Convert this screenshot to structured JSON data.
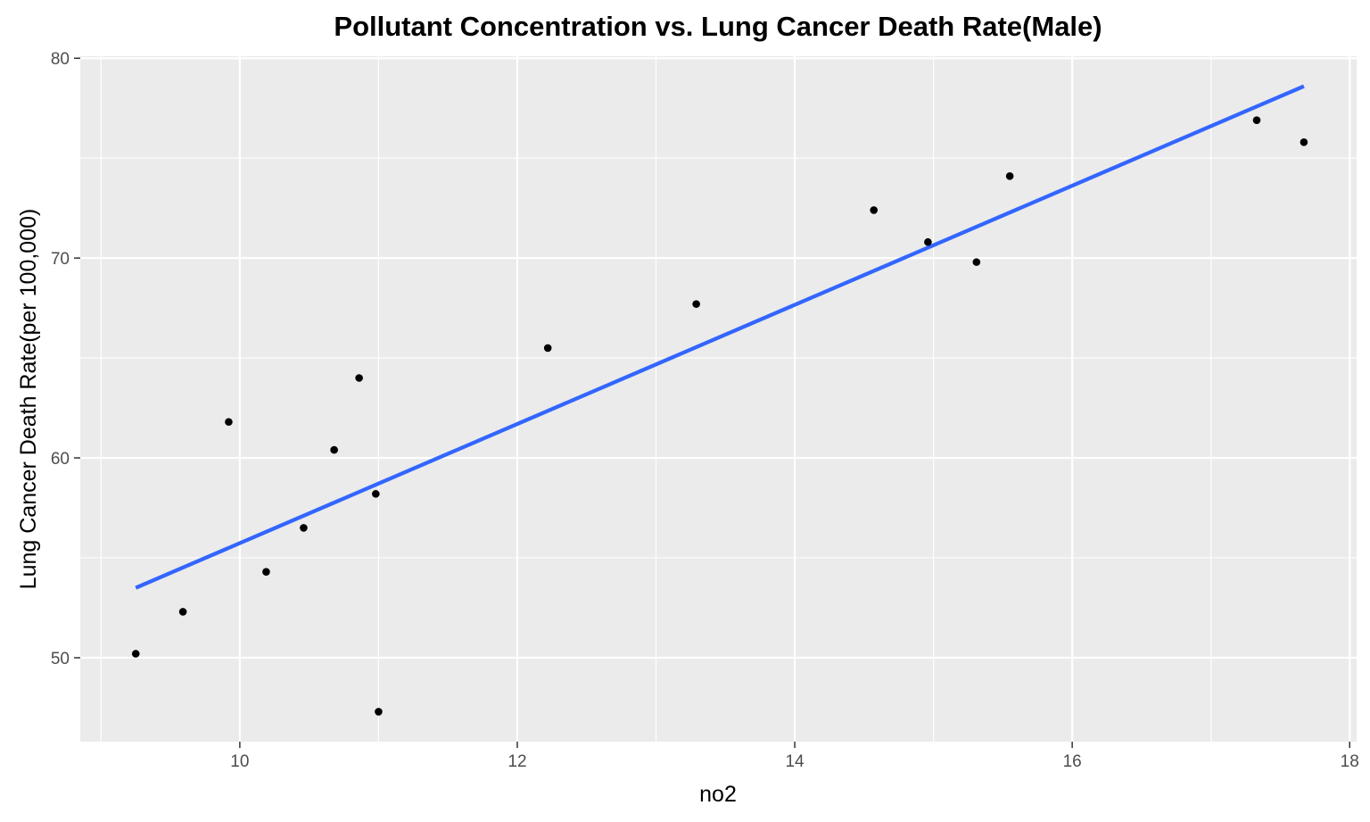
{
  "chart_data": {
    "type": "scatter",
    "title": "Pollutant Concentration vs. Lung Cancer Death Rate(Male)",
    "xlabel": "no2",
    "ylabel": "Lung Cancer Death Rate(per 100,000)",
    "xlim": [
      8.85,
      18.05
    ],
    "ylim": [
      45.8,
      80.1
    ],
    "x_ticks": [
      10,
      12,
      14,
      16,
      18
    ],
    "x_tick_labels": [
      "10",
      "12",
      "14",
      "16",
      "18"
    ],
    "x_minor_ticks": [
      9,
      11,
      13,
      15,
      17
    ],
    "y_ticks": [
      50,
      60,
      70,
      80
    ],
    "y_tick_labels": [
      "50",
      "60",
      "70",
      "80"
    ],
    "y_minor_ticks": [
      55,
      65,
      75
    ],
    "grid": true,
    "legend": "none",
    "series": [
      {
        "type": "scatter",
        "color": "#000000",
        "x": [
          9.25,
          9.59,
          9.92,
          10.19,
          10.46,
          10.68,
          10.86,
          10.98,
          11.0,
          12.22,
          13.29,
          14.57,
          14.96,
          15.31,
          15.55,
          17.33,
          17.67
        ],
        "y": [
          50.2,
          52.3,
          61.8,
          54.3,
          56.5,
          60.4,
          64.0,
          58.2,
          47.3,
          65.5,
          67.7,
          72.4,
          70.8,
          69.8,
          74.1,
          76.9,
          75.8
        ]
      },
      {
        "type": "line",
        "color": "#3366ff",
        "x": [
          9.25,
          17.67
        ],
        "y": [
          53.5,
          78.6
        ]
      }
    ]
  }
}
